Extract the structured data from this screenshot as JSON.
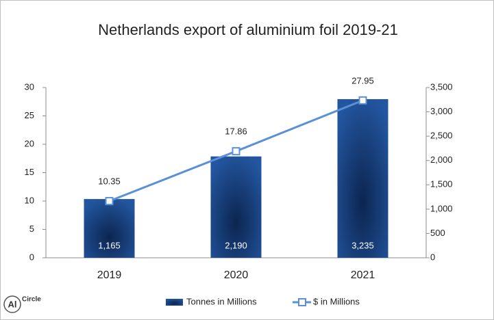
{
  "chart_data": {
    "type": "bar-line",
    "title": "Netherlands export of aluminium foil 2019-21",
    "categories": [
      "2019",
      "2020",
      "2021"
    ],
    "series": [
      {
        "name": "Tonnes in Millions",
        "type": "bar",
        "color": "#1f4f94",
        "values": [
          10.35,
          17.86,
          27.95
        ]
      },
      {
        "name": "$ in Millions",
        "type": "line",
        "axis": "y2",
        "color": "#5b8fd6",
        "values": [
          1165,
          2190,
          3235
        ],
        "value_labels": [
          "1,165",
          "2,190",
          "3,235"
        ]
      }
    ],
    "ylim": [
      0,
      30
    ],
    "yticks": [
      0,
      5,
      10,
      15,
      20,
      25,
      30
    ],
    "y2lim": [
      0,
      3500
    ],
    "y2ticks": [
      0,
      500,
      {
        "value": 1000,
        "label": "1,000"
      },
      {
        "value": 1500,
        "label": "1,500"
      },
      {
        "value": 2000,
        "label": "2,000"
      },
      {
        "value": 2500,
        "label": "2,500"
      },
      {
        "value": 3000,
        "label": "3,000"
      },
      {
        "value": 3500,
        "label": "3,500"
      }
    ],
    "grid": false,
    "legend": "bottom",
    "logo": {
      "symbol": "Al",
      "text": "Circle"
    }
  }
}
